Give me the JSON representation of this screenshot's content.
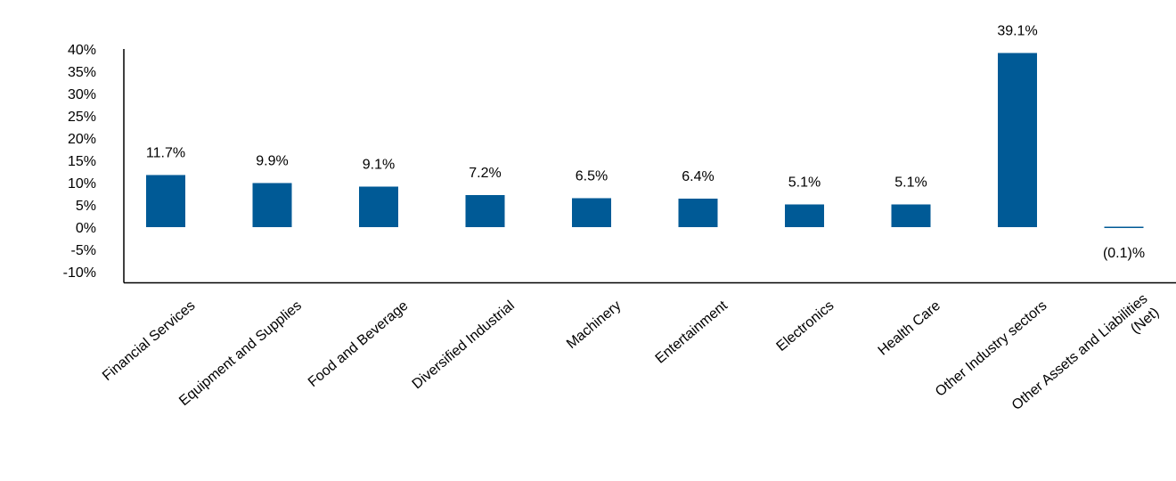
{
  "chart_data": {
    "type": "bar",
    "categories": [
      "Financial Services",
      "Equipment and Supplies",
      "Food and Beverage",
      "Diversified Industrial",
      "Machinery",
      "Entertainment",
      "Electronics",
      "Health Care",
      "Other Industry sectors",
      "Other Assets and Liabilities (Net)"
    ],
    "category_label_lines": [
      [
        "Financial Services"
      ],
      [
        "Equipment and Supplies"
      ],
      [
        "Food and Beverage"
      ],
      [
        "Diversified Industrial"
      ],
      [
        "Machinery"
      ],
      [
        "Entertainment"
      ],
      [
        "Electronics"
      ],
      [
        "Health Care"
      ],
      [
        "Other Industry sectors"
      ],
      [
        "Other Assets and Liabilities",
        "(Net)"
      ]
    ],
    "values": [
      11.7,
      9.9,
      9.1,
      7.2,
      6.5,
      6.4,
      5.1,
      5.1,
      39.1,
      -0.1
    ],
    "data_labels": [
      "11.7%",
      "9.9%",
      "9.1%",
      "7.2%",
      "6.5%",
      "6.4%",
      "5.1%",
      "5.1%",
      "39.1%",
      "(0.1)%"
    ],
    "y_ticks": [
      40,
      35,
      30,
      25,
      20,
      15,
      10,
      5,
      0,
      -5,
      -10
    ],
    "y_tick_labels": [
      "40%",
      "35%",
      "30%",
      "25%",
      "20%",
      "15%",
      "10%",
      "5%",
      "0%",
      "-5%",
      "-10%"
    ],
    "ylim": [
      -12.5,
      40
    ],
    "bar_color": "#005a96",
    "grid": false,
    "legend": "none",
    "title": "",
    "xlabel": "",
    "ylabel": ""
  }
}
